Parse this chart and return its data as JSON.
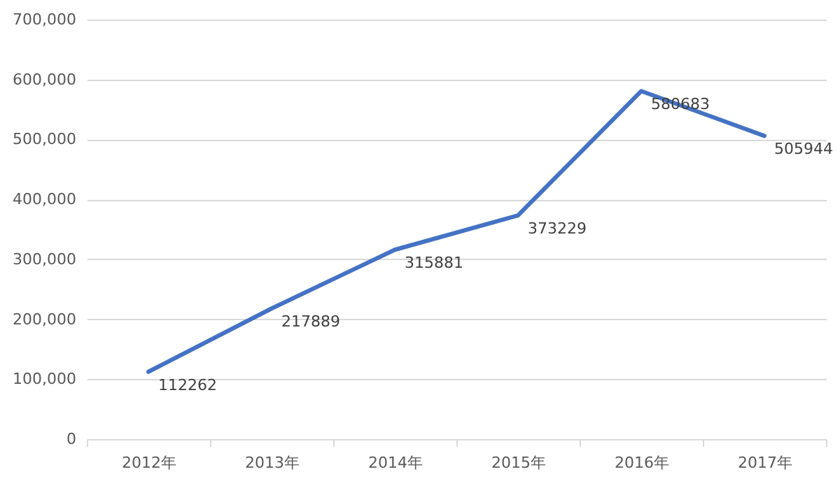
{
  "chart_data": {
    "type": "line",
    "categories": [
      "2012年",
      "2013年",
      "2014年",
      "2015年",
      "2016年",
      "2017年"
    ],
    "series": [
      {
        "color": "#4472c4",
        "values": [
          112262,
          217889,
          315881,
          373229,
          580683,
          505944
        ]
      }
    ],
    "ylim": [
      0,
      700000
    ],
    "yticks": [
      0,
      {
        "value": 100000,
        "label": "100,000"
      },
      {
        "value": 200000,
        "label": "200,000"
      },
      {
        "value": 300000,
        "label": "300,000"
      },
      {
        "value": 400000,
        "label": "400,000"
      },
      {
        "value": 500000,
        "label": "500,000"
      },
      {
        "value": 600000,
        "label": "600,000"
      },
      {
        "value": 700000,
        "label": "700,000"
      }
    ],
    "grid": "y",
    "data_labels": true,
    "marker": "none",
    "line_style": "solid"
  }
}
